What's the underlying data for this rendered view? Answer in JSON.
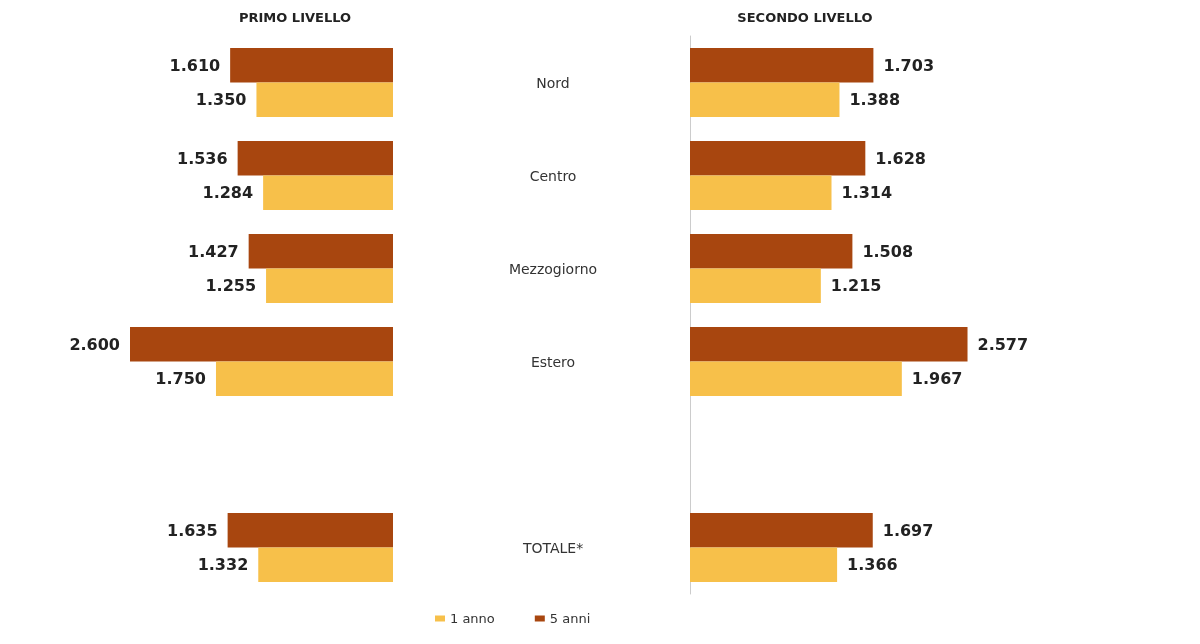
{
  "chart_data": [
    {
      "type": "bar",
      "title": "PRIMO LIVELLO",
      "orientation": "horizontal",
      "categories": [
        "Nord",
        "Centro",
        "Mezzogiorno",
        "Estero",
        null,
        "TOTALE*"
      ],
      "series": [
        {
          "name": "1 anno",
          "color": "#f7c04a",
          "values": [
            1350,
            1284,
            1255,
            1750,
            null,
            1332
          ],
          "value_labels": [
            "1.350",
            "1.284",
            "1.255",
            "1.750",
            null,
            "1.332"
          ]
        },
        {
          "name": "5 anni",
          "color": "#a8460f",
          "values": [
            1610,
            1536,
            1427,
            2600,
            null,
            1635
          ],
          "value_labels": [
            "1.610",
            "1.536",
            "1.427",
            "2.600",
            null,
            "1.635"
          ]
        }
      ],
      "legend": "bottom",
      "tick_labels": "y"
    },
    {
      "type": "bar",
      "title": "SECONDO LIVELLO",
      "orientation": "horizontal",
      "series": [
        {
          "color": "#f7c04a",
          "values": [
            1388,
            1314,
            1215,
            1967,
            null,
            1366
          ],
          "value_labels": [
            "1.388",
            "1.314",
            "1.215",
            "1.967",
            null,
            "1.366"
          ]
        },
        {
          "color": "#a8460f",
          "values": [
            1703,
            1628,
            1508,
            2577,
            null,
            1697
          ],
          "value_labels": [
            "1.703",
            "1.628",
            "1.508",
            "2.577",
            null,
            "1.697"
          ]
        }
      ],
      "tick_labels": false
    }
  ]
}
